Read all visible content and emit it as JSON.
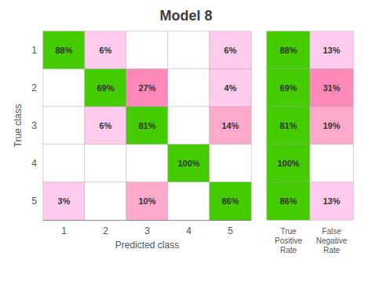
{
  "chart_data": {
    "type": "heatmap",
    "title": "Model 8",
    "xlabel": "Predicted class",
    "ylabel": "True class",
    "categories": [
      "1",
      "2",
      "3",
      "4",
      "5"
    ],
    "values": [
      [
        88,
        6,
        0,
        0,
        6
      ],
      [
        0,
        69,
        27,
        0,
        4
      ],
      [
        0,
        6,
        81,
        0,
        14
      ],
      [
        0,
        0,
        0,
        100,
        0
      ],
      [
        3,
        0,
        10,
        0,
        86
      ]
    ],
    "value_labels": [
      [
        "88%",
        "6%",
        null,
        null,
        "6%"
      ],
      [
        null,
        "69%",
        "27%",
        null,
        "4%"
      ],
      [
        null,
        "6%",
        "81%",
        null,
        "14%"
      ],
      [
        null,
        null,
        null,
        "100%",
        null
      ],
      [
        "3%",
        null,
        "10%",
        null,
        "86%"
      ]
    ],
    "colors": [
      [
        "#44cc00",
        "#ffccee",
        "#ffffff",
        "#ffffff",
        "#ffccee"
      ],
      [
        "#ffffff",
        "#44cc00",
        "#ff88bb",
        "#ffffff",
        "#ffccee"
      ],
      [
        "#ffffff",
        "#ffccee",
        "#44cc00",
        "#ffffff",
        "#ffaacc"
      ],
      [
        "#ffffff",
        "#ffffff",
        "#ffffff",
        "#44cc00",
        "#ffffff"
      ],
      [
        "#ffccee",
        "#ffffff",
        "#ffaacc",
        "#ffffff",
        "#44cc00"
      ]
    ],
    "summary_columns": [
      {
        "name": "True\nPositive\nRate",
        "values": [
          88,
          69,
          81,
          100,
          86
        ],
        "value_labels": [
          "88%",
          "69%",
          "81%",
          "100%",
          "86%"
        ],
        "colors": [
          "#44cc00",
          "#44cc00",
          "#44cc00",
          "#44cc00",
          "#44cc00"
        ]
      },
      {
        "name": "False\nNegative\nRate",
        "values": [
          13,
          31,
          19,
          0,
          13
        ],
        "value_labels": [
          "13%",
          "31%",
          "19%",
          null,
          "13%"
        ],
        "colors": [
          "#ffccee",
          "#ff88bb",
          "#ffaacc",
          "#ffffff",
          "#ffccee"
        ]
      }
    ]
  }
}
